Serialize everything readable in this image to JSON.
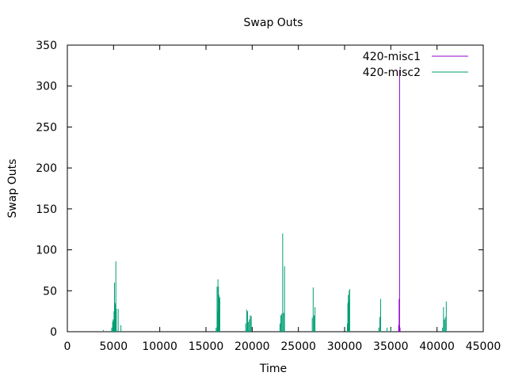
{
  "chart_data": {
    "type": "line",
    "title": "Swap Outs",
    "xlabel": "Time",
    "ylabel": "Swap Outs",
    "xlim": [
      0,
      45000
    ],
    "ylim": [
      0,
      350
    ],
    "x_ticks": [
      0,
      5000,
      10000,
      15000,
      20000,
      25000,
      30000,
      35000,
      40000,
      45000
    ],
    "y_ticks": [
      0,
      50,
      100,
      150,
      200,
      250,
      300,
      350
    ],
    "legend_position": "top-right",
    "grid": false,
    "series": [
      {
        "name": "420-misc1",
        "color": "#9400d3",
        "points": [
          [
            35850,
            8
          ],
          [
            35900,
            40
          ],
          [
            35950,
            320
          ],
          [
            36000,
            5
          ]
        ]
      },
      {
        "name": "420-misc2",
        "color": "#009e73",
        "points": [
          [
            3900,
            2
          ],
          [
            4800,
            5
          ],
          [
            4900,
            12
          ],
          [
            4950,
            15
          ],
          [
            5000,
            13
          ],
          [
            5050,
            25
          ],
          [
            5100,
            60
          ],
          [
            5150,
            33
          ],
          [
            5200,
            35
          ],
          [
            5250,
            86
          ],
          [
            5300,
            28
          ],
          [
            5500,
            28
          ],
          [
            5800,
            8
          ],
          [
            16100,
            5
          ],
          [
            16200,
            55
          ],
          [
            16250,
            25
          ],
          [
            16300,
            64
          ],
          [
            16350,
            55
          ],
          [
            16400,
            45
          ],
          [
            16450,
            40
          ],
          [
            16500,
            42
          ],
          [
            19300,
            10
          ],
          [
            19400,
            27
          ],
          [
            19500,
            25
          ],
          [
            19600,
            12
          ],
          [
            19700,
            15
          ],
          [
            19800,
            20
          ],
          [
            19900,
            19
          ],
          [
            23000,
            10
          ],
          [
            23100,
            20
          ],
          [
            23200,
            22
          ],
          [
            23300,
            120
          ],
          [
            23400,
            23
          ],
          [
            23500,
            80
          ],
          [
            26500,
            17
          ],
          [
            26600,
            54
          ],
          [
            26700,
            20
          ],
          [
            26800,
            30
          ],
          [
            30300,
            10
          ],
          [
            30350,
            35
          ],
          [
            30400,
            45
          ],
          [
            30450,
            38
          ],
          [
            30500,
            50
          ],
          [
            30550,
            52
          ],
          [
            33700,
            5
          ],
          [
            33800,
            18
          ],
          [
            33900,
            40
          ],
          [
            34600,
            5
          ],
          [
            35000,
            4
          ],
          [
            40600,
            5
          ],
          [
            40700,
            30
          ],
          [
            40800,
            15
          ],
          [
            40900,
            18
          ],
          [
            41000,
            37
          ]
        ]
      }
    ]
  }
}
